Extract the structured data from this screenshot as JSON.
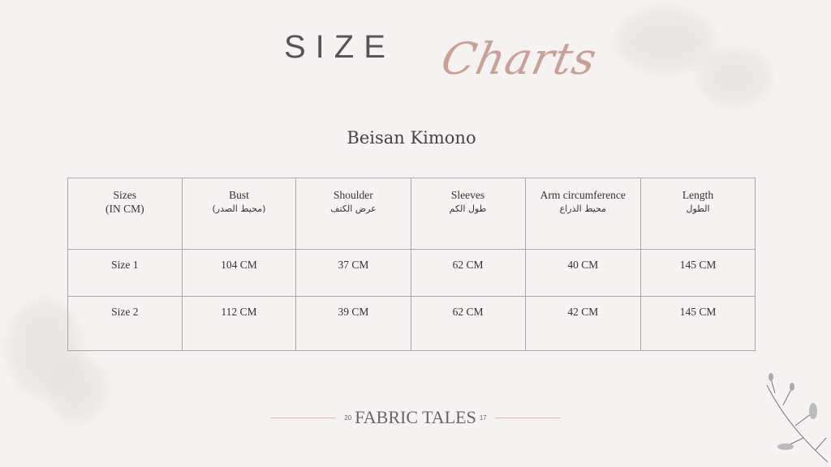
{
  "header": {
    "size": "SIZE",
    "charts": "Charts",
    "product": "Beisan Kimono"
  },
  "table": {
    "headers": [
      {
        "en": "Sizes",
        "sub": "(IN CM)"
      },
      {
        "en": "Bust",
        "sub": "(محيط الصدر)"
      },
      {
        "en": "Shoulder",
        "sub": "عرض الكتف"
      },
      {
        "en": "Sleeves",
        "sub": "طول الكم"
      },
      {
        "en": "Arm circumference",
        "sub": "محيط الذراع"
      },
      {
        "en": "Length",
        "sub": "الطول"
      }
    ],
    "rows": [
      [
        "Size 1",
        "104 CM",
        "37 CM",
        "62 CM",
        "40 CM",
        "145 CM"
      ],
      [
        "Size 2",
        "112 CM",
        "39 CM",
        "62 CM",
        "42 CM",
        "145 CM"
      ]
    ]
  },
  "footer": {
    "year_left": "20",
    "brand": "FABRIC TALES",
    "year_right": "17"
  },
  "colors": {
    "accent": "#c9a096",
    "background": "#f5f2f1"
  }
}
